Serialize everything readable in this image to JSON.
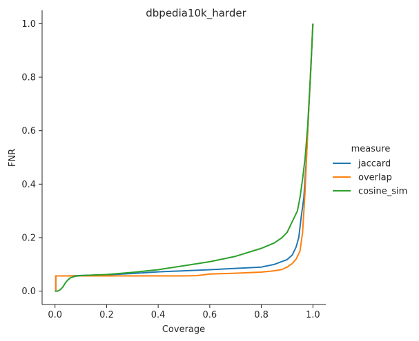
{
  "chart_data": {
    "type": "line",
    "title": "dbpedia10k_harder",
    "xlabel": "Coverage",
    "ylabel": "FNR",
    "xlim": [
      -0.05,
      1.05
    ],
    "ylim": [
      -0.05,
      1.05
    ],
    "xticks": [
      "0.0",
      "0.2",
      "0.4",
      "0.6",
      "0.8",
      "1.0"
    ],
    "yticks": [
      "0.0",
      "0.2",
      "0.4",
      "0.6",
      "0.8",
      "1.0"
    ],
    "grid": false,
    "legend": {
      "title": "measure",
      "placement": "right"
    },
    "series": [
      {
        "name": "jaccard",
        "color": "#1f77b4",
        "points": [
          [
            0.0,
            0.0
          ],
          [
            0.003,
            0.0
          ],
          [
            0.003,
            0.057
          ],
          [
            0.05,
            0.057
          ],
          [
            0.08,
            0.058
          ],
          [
            0.15,
            0.06
          ],
          [
            0.2,
            0.061
          ],
          [
            0.3,
            0.066
          ],
          [
            0.4,
            0.072
          ],
          [
            0.5,
            0.076
          ],
          [
            0.6,
            0.08
          ],
          [
            0.7,
            0.085
          ],
          [
            0.8,
            0.09
          ],
          [
            0.85,
            0.1
          ],
          [
            0.9,
            0.118
          ],
          [
            0.92,
            0.135
          ],
          [
            0.935,
            0.165
          ],
          [
            0.945,
            0.2
          ],
          [
            0.955,
            0.28
          ],
          [
            0.965,
            0.35
          ],
          [
            0.975,
            0.5
          ],
          [
            0.985,
            0.7
          ],
          [
            0.993,
            0.85
          ],
          [
            1.0,
            1.0
          ]
        ]
      },
      {
        "name": "overlap",
        "color": "#ff7f0e",
        "points": [
          [
            0.0,
            0.0
          ],
          [
            0.003,
            0.0
          ],
          [
            0.003,
            0.057
          ],
          [
            0.1,
            0.057
          ],
          [
            0.2,
            0.057
          ],
          [
            0.3,
            0.057
          ],
          [
            0.4,
            0.057
          ],
          [
            0.5,
            0.057
          ],
          [
            0.55,
            0.058
          ],
          [
            0.6,
            0.064
          ],
          [
            0.7,
            0.067
          ],
          [
            0.8,
            0.071
          ],
          [
            0.85,
            0.076
          ],
          [
            0.88,
            0.081
          ],
          [
            0.9,
            0.09
          ],
          [
            0.92,
            0.103
          ],
          [
            0.935,
            0.12
          ],
          [
            0.95,
            0.15
          ],
          [
            0.96,
            0.22
          ],
          [
            0.97,
            0.38
          ],
          [
            0.98,
            0.6
          ],
          [
            0.99,
            0.8
          ],
          [
            1.0,
            1.0
          ]
        ]
      },
      {
        "name": "cosine_sim",
        "color": "#2ca02c",
        "points": [
          [
            0.0,
            0.0
          ],
          [
            0.01,
            0.0
          ],
          [
            0.02,
            0.005
          ],
          [
            0.03,
            0.015
          ],
          [
            0.04,
            0.03
          ],
          [
            0.05,
            0.042
          ],
          [
            0.06,
            0.05
          ],
          [
            0.08,
            0.056
          ],
          [
            0.1,
            0.058
          ],
          [
            0.2,
            0.062
          ],
          [
            0.3,
            0.07
          ],
          [
            0.4,
            0.08
          ],
          [
            0.5,
            0.095
          ],
          [
            0.6,
            0.11
          ],
          [
            0.7,
            0.13
          ],
          [
            0.8,
            0.16
          ],
          [
            0.85,
            0.18
          ],
          [
            0.88,
            0.2
          ],
          [
            0.9,
            0.22
          ],
          [
            0.92,
            0.26
          ],
          [
            0.94,
            0.3
          ],
          [
            0.95,
            0.35
          ],
          [
            0.96,
            0.42
          ],
          [
            0.97,
            0.5
          ],
          [
            0.98,
            0.62
          ],
          [
            0.99,
            0.8
          ],
          [
            1.0,
            1.0
          ]
        ]
      }
    ]
  }
}
